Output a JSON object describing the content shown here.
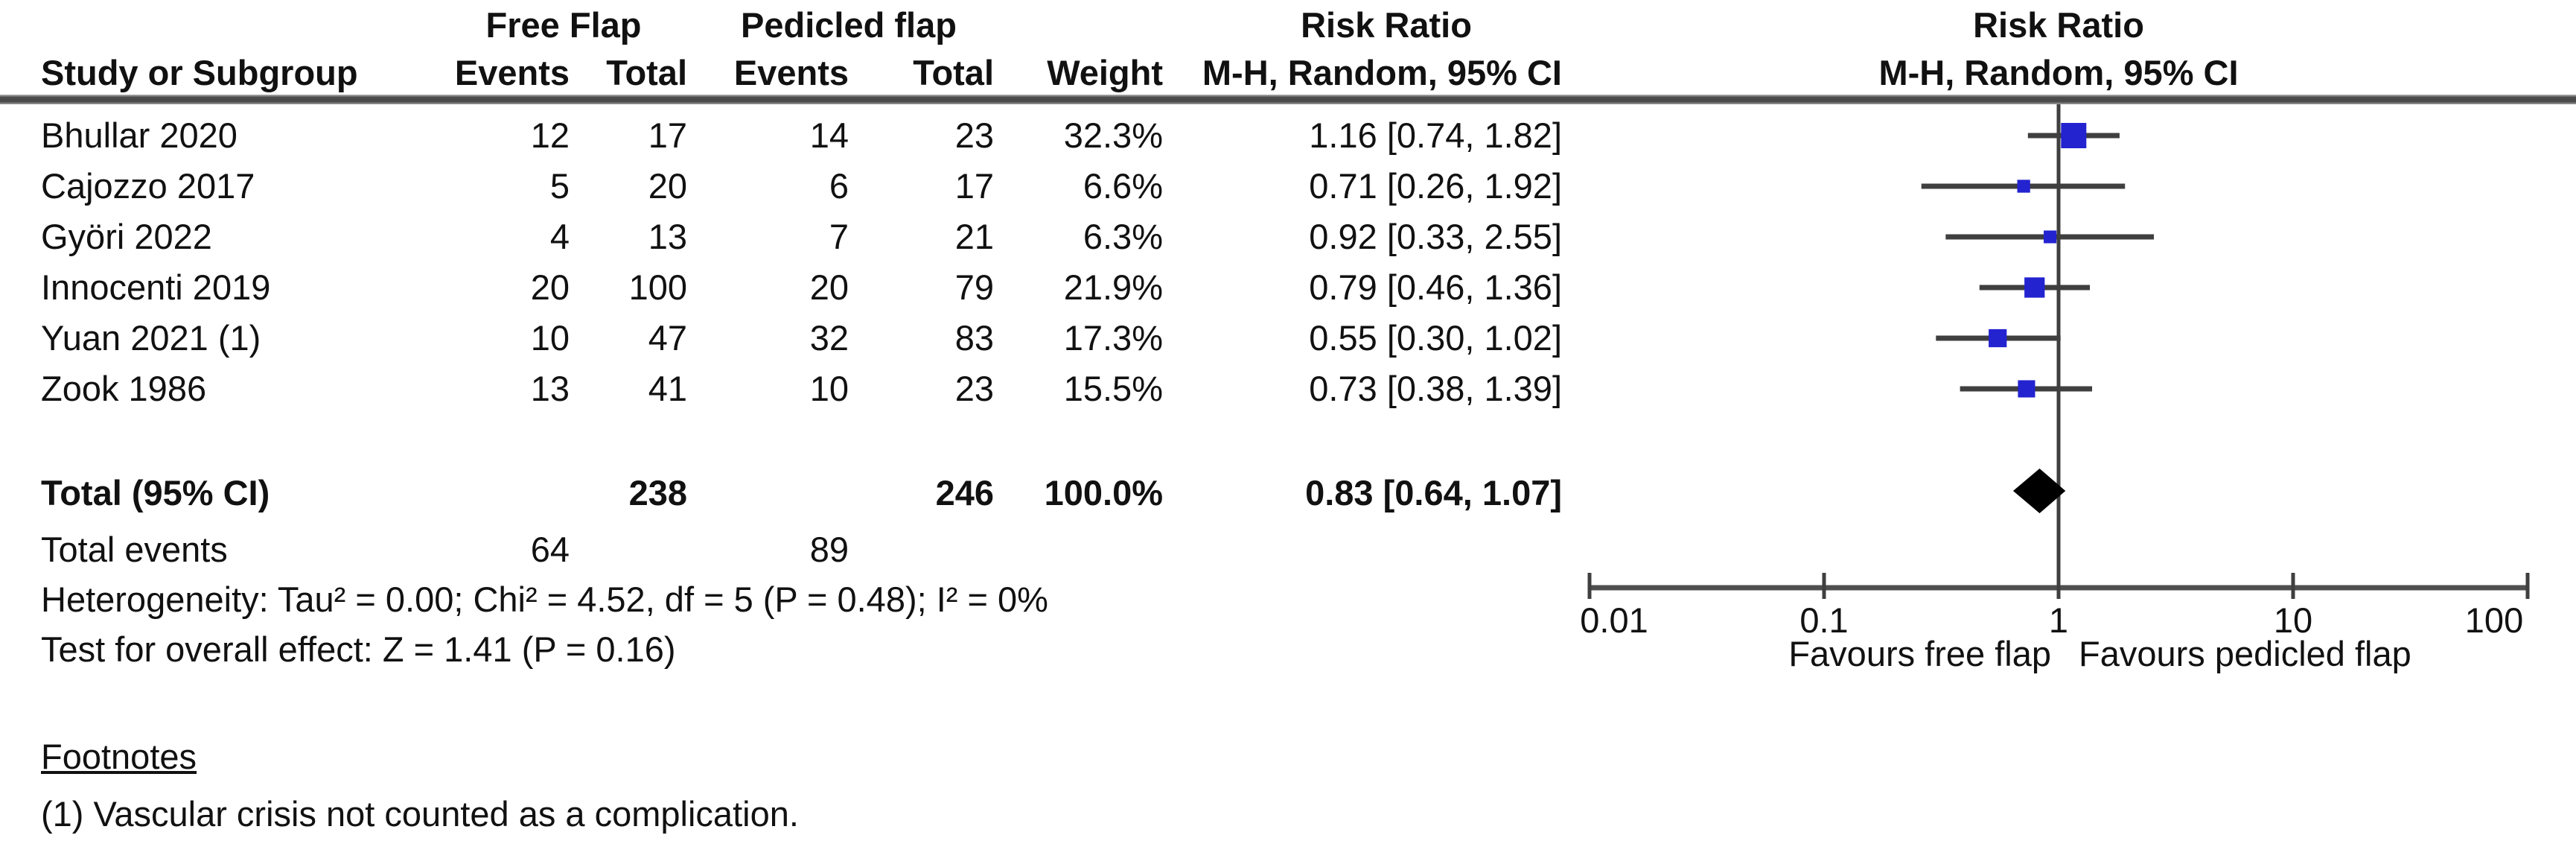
{
  "header": {
    "group1": "Free Flap",
    "group2": "Pedicled flap",
    "risk_ratio_left": "Risk Ratio",
    "risk_ratio_right": "Risk Ratio",
    "study_col": "Study or Subgroup",
    "events_col_1": "Events",
    "total_col_1": "Total",
    "events_col_2": "Events",
    "total_col_2": "Total",
    "weight_col": "Weight",
    "method_col_left": "M-H, Random, 95% CI",
    "method_col_right": "M-H, Random, 95% CI"
  },
  "table": {
    "total_row": {
      "label": "Total (95% CI)",
      "total1": "238",
      "total2": "246",
      "weight": "100.0%",
      "ci_text": "0.83 [0.64, 1.07]"
    },
    "total_events_row": {
      "label": "Total events",
      "events1": "64",
      "events2": "89"
    },
    "heterogeneity": "Heterogeneity: Tau² = 0.00; Chi² = 4.52, df = 5 (P = 0.48); I² = 0%",
    "overall_effect": "Test for overall effect: Z = 1.41 (P = 0.16)"
  },
  "footnotes": {
    "title": "Footnotes",
    "items": [
      "(1) Vascular crisis not counted as a complication."
    ]
  },
  "axis": {
    "labels": [
      "0.01",
      "0.1",
      "1",
      "10",
      "100"
    ],
    "favours_left": "Favours free flap",
    "favours_right": "Favours pedicled flap"
  },
  "chart_data": {
    "type": "scatter",
    "subtype": "forest-plot",
    "effect_measure": "Risk Ratio",
    "method": "M-H, Random, 95% CI",
    "x_scale": "log10",
    "xlim": [
      0.01,
      100
    ],
    "x_ticks": [
      0.01,
      0.1,
      1,
      10,
      100
    ],
    "grid": false,
    "studies": [
      {
        "name": "Bhullar 2020",
        "events1": "12",
        "total1": "17",
        "events2": "14",
        "total2": "23",
        "weight_text": "32.3%",
        "weight": 32.3,
        "ci_text": "1.16 [0.74, 1.82]",
        "rr": 1.16,
        "lo": 0.74,
        "hi": 1.82
      },
      {
        "name": "Cajozzo 2017",
        "events1": "5",
        "total1": "20",
        "events2": "6",
        "total2": "17",
        "weight_text": "6.6%",
        "weight": 6.6,
        "ci_text": "0.71 [0.26, 1.92]",
        "rr": 0.71,
        "lo": 0.26,
        "hi": 1.92
      },
      {
        "name": "Györi 2022",
        "events1": "4",
        "total1": "13",
        "events2": "7",
        "total2": "21",
        "weight_text": "6.3%",
        "weight": 6.3,
        "ci_text": "0.92 [0.33, 2.55]",
        "rr": 0.92,
        "lo": 0.33,
        "hi": 2.55
      },
      {
        "name": "Innocenti 2019",
        "events1": "20",
        "total1": "100",
        "events2": "20",
        "total2": "79",
        "weight_text": "21.9%",
        "weight": 21.9,
        "ci_text": "0.79 [0.46, 1.36]",
        "rr": 0.79,
        "lo": 0.46,
        "hi": 1.36
      },
      {
        "name": "Yuan 2021 (1)",
        "events1": "10",
        "total1": "47",
        "events2": "32",
        "total2": "83",
        "weight_text": "17.3%",
        "weight": 17.3,
        "ci_text": "0.55 [0.30, 1.02]",
        "rr": 0.55,
        "lo": 0.3,
        "hi": 1.02
      },
      {
        "name": "Zook 1986",
        "events1": "13",
        "total1": "41",
        "events2": "10",
        "total2": "23",
        "weight_text": "15.5%",
        "weight": 15.5,
        "ci_text": "0.73 [0.38, 1.39]",
        "rr": 0.73,
        "lo": 0.38,
        "hi": 1.39
      }
    ],
    "total": {
      "rr": 0.83,
      "lo": 0.64,
      "hi": 1.07
    },
    "favours_left": "Favours free flap",
    "favours_right": "Favours pedicled flap",
    "colors": {
      "square": "#2323d0",
      "diamond": "#000000",
      "line": "#3f3f3f",
      "axis": "#4f4f4f"
    }
  }
}
